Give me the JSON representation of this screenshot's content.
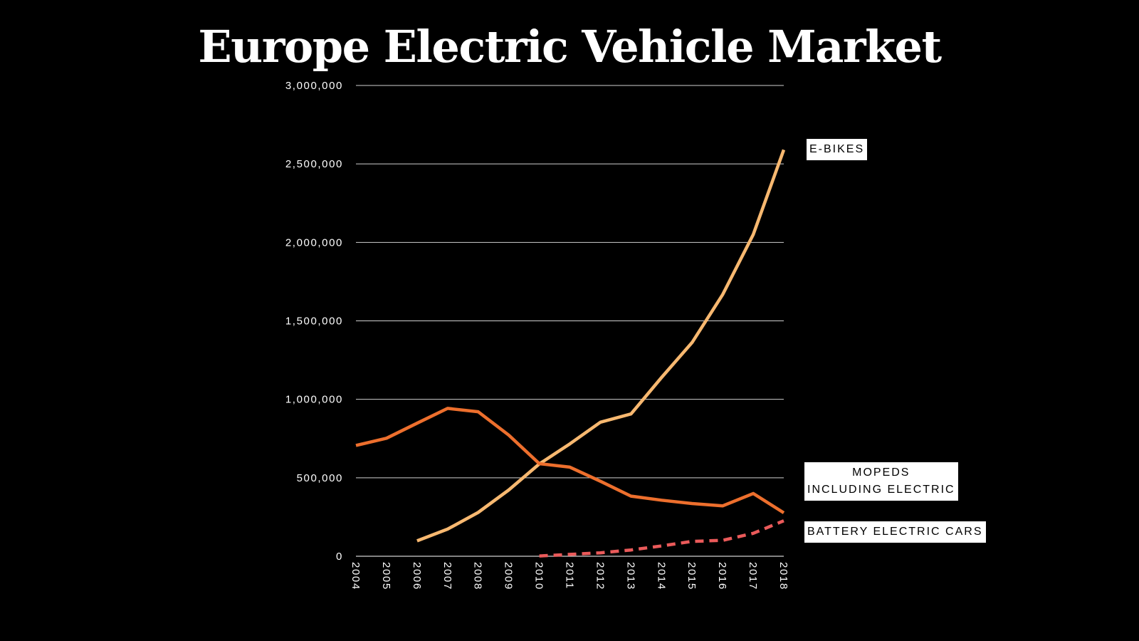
{
  "chart_data": {
    "type": "line",
    "title": "Europe Electric Vehicle Market",
    "xlabel": "",
    "ylabel": "",
    "x": [
      "2004",
      "2005",
      "2006",
      "2007",
      "2008",
      "2009",
      "2010",
      "2011",
      "2012",
      "2013",
      "2014",
      "2015",
      "2016",
      "2017",
      "2018"
    ],
    "ylim": [
      0,
      3000000
    ],
    "yticks": [
      0,
      500000,
      1000000,
      1500000,
      2000000,
      2500000,
      3000000
    ],
    "ytick_labels": [
      "0",
      "500,000",
      "1,000,000",
      "1,500,000",
      "2,000,000",
      "2,500,000",
      "3,000,000"
    ],
    "grid": true,
    "legend": "direct labels at right end of lines",
    "series": [
      {
        "name": "E-BIKES",
        "color": "#f7b870",
        "style": "solid",
        "values": [
          null,
          null,
          98000,
          173000,
          279000,
          422000,
          588000,
          716000,
          854000,
          907000,
          1139000,
          1362000,
          1667000,
          2050000,
          2590000
        ]
      },
      {
        "name": "MOPEDS\nINCLUDING ELECTRIC",
        "color": "#ed6f2d",
        "style": "solid",
        "values": [
          706000,
          752000,
          848000,
          942000,
          921000,
          772000,
          590000,
          568000,
          478000,
          383000,
          357000,
          336000,
          321000,
          400000,
          277000
        ]
      },
      {
        "name": "BATTERY ELECTRIC CARS",
        "color": "#ea5a5a",
        "style": "dashed",
        "values": [
          null,
          null,
          null,
          null,
          null,
          null,
          2000,
          12000,
          22000,
          40000,
          66000,
          95000,
          101000,
          146000,
          226000
        ]
      }
    ]
  }
}
